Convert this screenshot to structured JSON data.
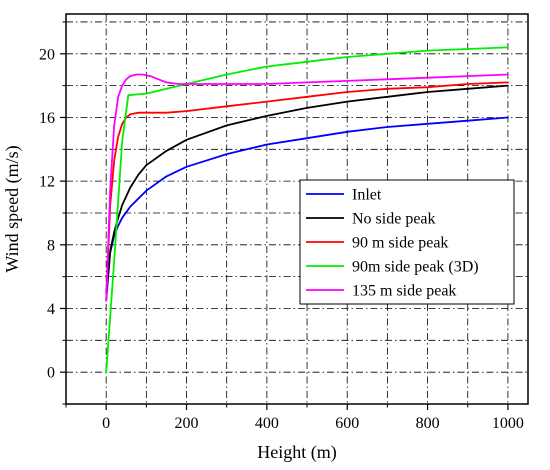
{
  "chart_data": {
    "type": "line",
    "title": "",
    "xlabel": "Height (m)",
    "ylabel": "Wind speed (m/s)",
    "xlim": [
      -100,
      1050
    ],
    "ylim": [
      -2,
      22.5
    ],
    "xticks": [
      0,
      200,
      400,
      600,
      800,
      1000
    ],
    "xtick_labels": [
      "0",
      "200",
      "400",
      "600",
      "800",
      "1000"
    ],
    "yticks": [
      0,
      4,
      8,
      12,
      16,
      20
    ],
    "ytick_labels": [
      "0",
      "4",
      "8",
      "12",
      "16",
      "20"
    ],
    "grid": true,
    "legend_position": "right",
    "series": [
      {
        "name": "Inlet",
        "color": "#0000ff",
        "x": [
          0,
          10,
          20,
          30,
          40,
          60,
          80,
          100,
          150,
          200,
          300,
          400,
          500,
          600,
          700,
          800,
          900,
          1000
        ],
        "y": [
          4.5,
          7.5,
          8.6,
          9.2,
          9.7,
          10.4,
          10.9,
          11.4,
          12.3,
          12.9,
          13.7,
          14.3,
          14.7,
          15.1,
          15.4,
          15.6,
          15.8,
          16.0
        ]
      },
      {
        "name": "No side peak",
        "color": "#000000",
        "x": [
          0,
          10,
          20,
          30,
          40,
          60,
          80,
          100,
          150,
          200,
          300,
          400,
          500,
          600,
          700,
          800,
          900,
          1000
        ],
        "y": [
          5.0,
          7.6,
          8.8,
          9.7,
          10.5,
          11.6,
          12.4,
          13.0,
          13.9,
          14.6,
          15.5,
          16.1,
          16.6,
          17.0,
          17.3,
          17.6,
          17.8,
          18.0
        ]
      },
      {
        "name": "90 m side peak",
        "color": "#ff0000",
        "x": [
          0,
          10,
          20,
          30,
          40,
          50,
          60,
          80,
          100,
          150,
          200,
          300,
          400,
          500,
          600,
          700,
          800,
          900,
          1000
        ],
        "y": [
          4.5,
          10.5,
          13.3,
          14.8,
          15.6,
          16.0,
          16.2,
          16.3,
          16.3,
          16.3,
          16.4,
          16.7,
          17.0,
          17.3,
          17.6,
          17.8,
          17.9,
          18.1,
          18.2
        ]
      },
      {
        "name": "90m side peak (3D)",
        "color": "#00ee00",
        "x": [
          0,
          20,
          40,
          55,
          100,
          150,
          200,
          300,
          400,
          500,
          600,
          700,
          800,
          900,
          1000
        ],
        "y": [
          0,
          7.0,
          14.5,
          17.4,
          17.5,
          17.8,
          18.1,
          18.7,
          19.2,
          19.5,
          19.8,
          20.0,
          20.2,
          20.3,
          20.4
        ]
      },
      {
        "name": "135 m side peak",
        "color": "#ff00ff",
        "x": [
          0,
          10,
          20,
          30,
          40,
          50,
          60,
          75,
          90,
          110,
          130,
          150,
          180,
          200,
          300,
          400,
          500,
          600,
          700,
          800,
          900,
          1000
        ],
        "y": [
          4.5,
          11.5,
          15.5,
          17.3,
          18.0,
          18.4,
          18.6,
          18.7,
          18.7,
          18.6,
          18.4,
          18.2,
          18.1,
          18.1,
          18.1,
          18.1,
          18.2,
          18.3,
          18.4,
          18.5,
          18.6,
          18.7
        ]
      }
    ]
  }
}
